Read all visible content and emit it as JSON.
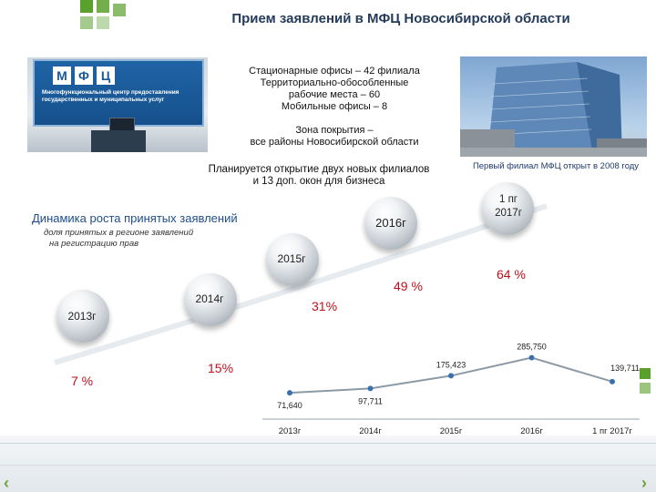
{
  "title": "Прием заявлений в МФЦ Новосибирской области",
  "photo_left": {
    "logo_letters": [
      "М",
      "Ф",
      "Ц"
    ],
    "sign_text": "Многофункциональный центр предоставления государственных и муниципальных услуг"
  },
  "info": {
    "offices_line1": "Стационарные офисы – 42 филиала",
    "offices_line2": "Территориально-обособленные",
    "offices_line3": "рабочие места – 60",
    "offices_line4": "Мобильные офисы – 8",
    "coverage_line1": "Зона покрытия –",
    "coverage_line2": "все районы Новосибирской области",
    "plan_line1": "Планируется открытие двух новых филиалов",
    "plan_line2": "и 13 доп. окон для бизнеса"
  },
  "photo_right_caption": "Первый филиал МФЦ открыт в 2008 году",
  "dynamics": {
    "title": "Динамика роста принятых заявлений",
    "subtitle_line1": "доля принятых в регионе заявлений",
    "subtitle_line2": "на регистрацию прав"
  },
  "milestones": [
    {
      "label": "2013г",
      "pct": "7 %"
    },
    {
      "label": "2014г",
      "pct": "15%"
    },
    {
      "label": "2015г",
      "pct": "31%"
    },
    {
      "label": "2016г",
      "pct": "49 %"
    },
    {
      "label_line1": "1 пг",
      "label_line2": "2017г",
      "pct": "64 %"
    }
  ],
  "colors": {
    "accent_green": "#5aa02c",
    "title_blue": "#243b5a",
    "pct_red": "#c0101c",
    "line_gray": "#8c9aa6",
    "marker_blue": "#3a6fb0"
  },
  "chart_data": {
    "type": "line",
    "title": "",
    "xlabel": "",
    "ylabel": "",
    "categories": [
      "2013г",
      "2014г",
      "2015г",
      "2016г",
      "1 пг 2017г"
    ],
    "values": [
      71640,
      97711,
      175423,
      285750,
      139711
    ],
    "value_labels": [
      "71,640",
      "97,711",
      "175,423",
      "285,750",
      "139,711"
    ],
    "ylim": [
      0,
      300000
    ],
    "grid": false,
    "legend": "none"
  }
}
